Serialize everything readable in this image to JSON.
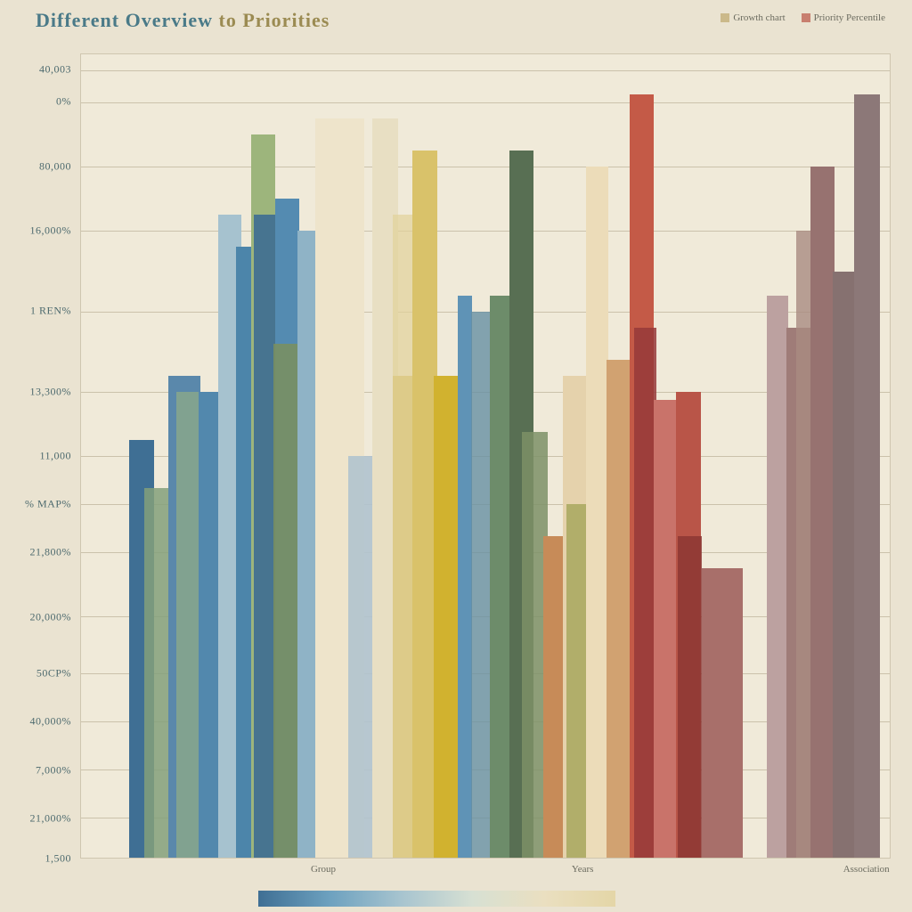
{
  "title": {
    "text": "Different Overview to Priorities",
    "color_a": "#4a7a88",
    "color_b": "#9b8b52"
  },
  "legend": {
    "items": [
      {
        "label": "Growth chart",
        "swatch": "#cbb98a"
      },
      {
        "label": "Priority Percentile",
        "swatch": "#c87f6f"
      }
    ]
  },
  "chart": {
    "type": "bar",
    "background_color": "#f0ead9",
    "page_background": "#eae3d1",
    "grid_color": "#cbc2ab",
    "y_axis": {
      "ticks": [
        {
          "label": "40,003",
          "pos": 0.02
        },
        {
          "label": "0%",
          "pos": 0.06
        },
        {
          "label": "80,000",
          "pos": 0.14
        },
        {
          "label": "16,000%",
          "pos": 0.22
        },
        {
          "label": "1 REN%",
          "pos": 0.32
        },
        {
          "label": "13,300%",
          "pos": 0.42
        },
        {
          "label": "11,000",
          "pos": 0.5
        },
        {
          "label": "% MAP%",
          "pos": 0.56
        },
        {
          "label": "21,800%",
          "pos": 0.62
        },
        {
          "label": "20,000%",
          "pos": 0.7
        },
        {
          "label": "50CP%",
          "pos": 0.77
        },
        {
          "label": "40,000%",
          "pos": 0.83
        },
        {
          "label": "7,000%",
          "pos": 0.89
        },
        {
          "label": "21,000%",
          "pos": 0.95
        },
        {
          "label": "1,500",
          "pos": 1.0
        }
      ]
    },
    "gridlines_at": [
      0.02,
      0.06,
      0.14,
      0.22,
      0.32,
      0.42,
      0.5,
      0.56,
      0.62,
      0.7,
      0.77,
      0.83,
      0.89,
      0.95
    ],
    "x_axis": {
      "labels": [
        {
          "text": "Group",
          "pos": 0.3
        },
        {
          "text": "Years",
          "pos": 0.62
        },
        {
          "text": "Association",
          "pos": 0.97
        }
      ]
    },
    "bars": [
      {
        "x": 0.06,
        "w": 0.03,
        "h": 0.52,
        "c": "#3f6f94"
      },
      {
        "x": 0.078,
        "w": 0.034,
        "h": 0.46,
        "c": "#84a07a",
        "o": 0.85
      },
      {
        "x": 0.108,
        "w": 0.04,
        "h": 0.6,
        "c": "#5a88ab"
      },
      {
        "x": 0.118,
        "w": 0.034,
        "h": 0.58,
        "c": "#9bb47f",
        "o": 0.6
      },
      {
        "x": 0.145,
        "w": 0.03,
        "h": 0.58,
        "c": "#5288ad"
      },
      {
        "x": 0.17,
        "w": 0.028,
        "h": 0.8,
        "c": "#a6c2cf"
      },
      {
        "x": 0.192,
        "w": 0.022,
        "h": 0.76,
        "c": "#4c85aa"
      },
      {
        "x": 0.21,
        "w": 0.03,
        "h": 0.9,
        "c": "#9db57c"
      },
      {
        "x": 0.214,
        "w": 0.026,
        "h": 0.8,
        "c": "#3e6d92",
        "o": 0.9
      },
      {
        "x": 0.24,
        "w": 0.03,
        "h": 0.82,
        "c": "#548bb1"
      },
      {
        "x": 0.238,
        "w": 0.04,
        "h": 0.64,
        "c": "#7b8f5e",
        "o": 0.85
      },
      {
        "x": 0.268,
        "w": 0.032,
        "h": 0.78,
        "c": "#8fb3c6"
      },
      {
        "x": 0.29,
        "w": 0.06,
        "h": 0.92,
        "c": "#eee4cb"
      },
      {
        "x": 0.33,
        "w": 0.045,
        "h": 0.5,
        "c": "#b0c3ce",
        "o": 0.9
      },
      {
        "x": 0.36,
        "w": 0.032,
        "h": 0.92,
        "c": "#e8dfc3"
      },
      {
        "x": 0.386,
        "w": 0.028,
        "h": 0.6,
        "c": "#d2bb63"
      },
      {
        "x": 0.386,
        "w": 0.028,
        "h": 0.8,
        "c": "#e1d19a",
        "o": 0.7
      },
      {
        "x": 0.41,
        "w": 0.03,
        "h": 0.88,
        "c": "#d9c26a"
      },
      {
        "x": 0.436,
        "w": 0.03,
        "h": 0.6,
        "c": "#d1b22f"
      },
      {
        "x": 0.466,
        "w": 0.018,
        "h": 0.7,
        "c": "#5f93b6"
      },
      {
        "x": 0.482,
        "w": 0.028,
        "h": 0.68,
        "c": "#6790a3",
        "o": 0.8
      },
      {
        "x": 0.506,
        "w": 0.032,
        "h": 0.7,
        "c": "#6d8c6a"
      },
      {
        "x": 0.53,
        "w": 0.03,
        "h": 0.88,
        "c": "#586f53"
      },
      {
        "x": 0.545,
        "w": 0.032,
        "h": 0.53,
        "c": "#7c9166",
        "o": 0.85
      },
      {
        "x": 0.572,
        "w": 0.028,
        "h": 0.4,
        "c": "#c78b58"
      },
      {
        "x": 0.596,
        "w": 0.03,
        "h": 0.6,
        "c": "#e5d2ac"
      },
      {
        "x": 0.6,
        "w": 0.028,
        "h": 0.44,
        "c": "#a4a55a",
        "o": 0.8
      },
      {
        "x": 0.624,
        "w": 0.028,
        "h": 0.86,
        "c": "#ecdcb9"
      },
      {
        "x": 0.65,
        "w": 0.03,
        "h": 0.62,
        "c": "#d1a271"
      },
      {
        "x": 0.678,
        "w": 0.03,
        "h": 0.95,
        "c": "#c45a47"
      },
      {
        "x": 0.684,
        "w": 0.028,
        "h": 0.66,
        "c": "#96393a",
        "o": 0.85
      },
      {
        "x": 0.708,
        "w": 0.03,
        "h": 0.57,
        "c": "#c9736a"
      },
      {
        "x": 0.736,
        "w": 0.03,
        "h": 0.58,
        "c": "#b95548"
      },
      {
        "x": 0.738,
        "w": 0.03,
        "h": 0.4,
        "c": "#8a3532",
        "o": 0.8
      },
      {
        "x": 0.768,
        "w": 0.05,
        "h": 0.36,
        "c": "#a86f6a"
      },
      {
        "x": 0.848,
        "w": 0.026,
        "h": 0.7,
        "c": "#bca1a0"
      },
      {
        "x": 0.872,
        "w": 0.03,
        "h": 0.66,
        "c": "#9f7c78"
      },
      {
        "x": 0.884,
        "w": 0.028,
        "h": 0.78,
        "c": "#a98b81",
        "o": 0.8
      },
      {
        "x": 0.902,
        "w": 0.03,
        "h": 0.86,
        "c": "#977270"
      },
      {
        "x": 0.93,
        "w": 0.028,
        "h": 0.73,
        "c": "#867170"
      },
      {
        "x": 0.956,
        "w": 0.032,
        "h": 0.95,
        "c": "#8c7878"
      }
    ],
    "gradient_strip": {
      "left_pct": 0.22,
      "width_pct": 0.44,
      "stops": [
        "#3f6f94",
        "#6da1bf",
        "#a7c4cf",
        "#d7e0d3",
        "#eadfc0",
        "#e4d6a7"
      ]
    }
  }
}
